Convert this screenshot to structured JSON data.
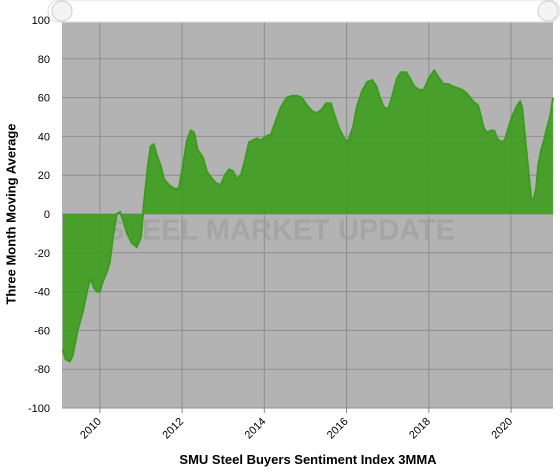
{
  "chart_data": {
    "type": "area",
    "title": "SMU Steel Buyers Sentiment Index 3MMA",
    "y_label": "Three Month Moving Average",
    "watermark": "STEEL MARKET UPDATE",
    "x": [
      2009.1,
      2009.17,
      2009.27,
      2009.34,
      2009.46,
      2009.59,
      2009.71,
      2009.78,
      2009.85,
      2009.93,
      2010.0,
      2010.07,
      2010.17,
      2010.24,
      2010.32,
      2010.41,
      2010.49,
      2010.56,
      2010.66,
      2010.78,
      2010.9,
      2011.0,
      2011.07,
      2011.17,
      2011.24,
      2011.31,
      2011.39,
      2011.48,
      2011.56,
      2011.68,
      2011.82,
      2011.92,
      2012.02,
      2012.12,
      2012.21,
      2012.29,
      2012.38,
      2012.51,
      2012.6,
      2012.7,
      2012.82,
      2012.94,
      2013.04,
      2013.14,
      2013.24,
      2013.33,
      2013.43,
      2013.53,
      2013.63,
      2013.72,
      2013.82,
      2013.92,
      2014.04,
      2014.16,
      2014.28,
      2014.4,
      2014.55,
      2014.67,
      2014.79,
      2014.91,
      2015.04,
      2015.16,
      2015.28,
      2015.4,
      2015.5,
      2015.62,
      2015.72,
      2015.82,
      2015.94,
      2016.03,
      2016.16,
      2016.25,
      2016.37,
      2016.5,
      2016.62,
      2016.72,
      2016.81,
      2016.91,
      2017.01,
      2017.1,
      2017.23,
      2017.32,
      2017.45,
      2017.54,
      2017.64,
      2017.76,
      2017.88,
      2018.0,
      2018.13,
      2018.22,
      2018.35,
      2018.47,
      2018.56,
      2018.69,
      2018.81,
      2018.93,
      2019.08,
      2019.2,
      2019.27,
      2019.34,
      2019.42,
      2019.51,
      2019.59,
      2019.66,
      2019.76,
      2019.85,
      2019.93,
      2020.02,
      2020.15,
      2020.22,
      2020.27,
      2020.34,
      2020.41,
      2020.49,
      2020.54,
      2020.61,
      2020.66,
      2020.73,
      2020.8,
      2020.88,
      2020.95,
      2021.02
    ],
    "series": [
      {
        "name": "SMU Steel Buyers Sentiment Index 3MMA",
        "color": "#3c9c1c",
        "values": [
          -70,
          -75,
          -76,
          -73,
          -60,
          -50,
          -38,
          -33,
          -38,
          -40,
          -40,
          -35,
          -30,
          -25,
          -12,
          0,
          1,
          -3,
          -10,
          -15,
          -17,
          -12,
          5,
          25,
          35,
          36,
          30,
          25,
          18,
          15,
          13,
          13,
          25,
          38,
          43,
          42,
          33,
          29,
          22,
          19,
          16,
          15,
          20,
          23,
          22,
          18,
          20,
          28,
          37,
          38,
          39,
          38,
          40,
          41,
          48,
          55,
          60,
          61,
          61,
          60,
          56,
          53,
          52,
          54,
          57,
          57,
          50,
          44,
          39,
          37,
          45,
          55,
          63,
          68,
          69,
          66,
          60,
          55,
          54,
          60,
          70,
          73,
          73,
          70,
          66,
          64,
          64,
          70,
          74,
          71,
          67,
          67,
          66,
          65,
          64,
          62,
          58,
          56,
          50,
          44,
          42,
          43,
          43,
          39,
          37,
          38,
          44,
          50,
          56,
          58,
          55,
          40,
          25,
          8,
          7,
          13,
          25,
          33,
          38,
          45,
          50,
          60
        ]
      }
    ],
    "xlim": [
      2009.08,
      2021.02
    ],
    "xticks": [
      2010,
      2012,
      2014,
      2016,
      2018,
      2020
    ],
    "ylim": [
      -100,
      100
    ],
    "yticks": [
      -100,
      -80,
      -60,
      -40,
      -20,
      0,
      20,
      40,
      60,
      80,
      100
    ],
    "grid": true
  }
}
